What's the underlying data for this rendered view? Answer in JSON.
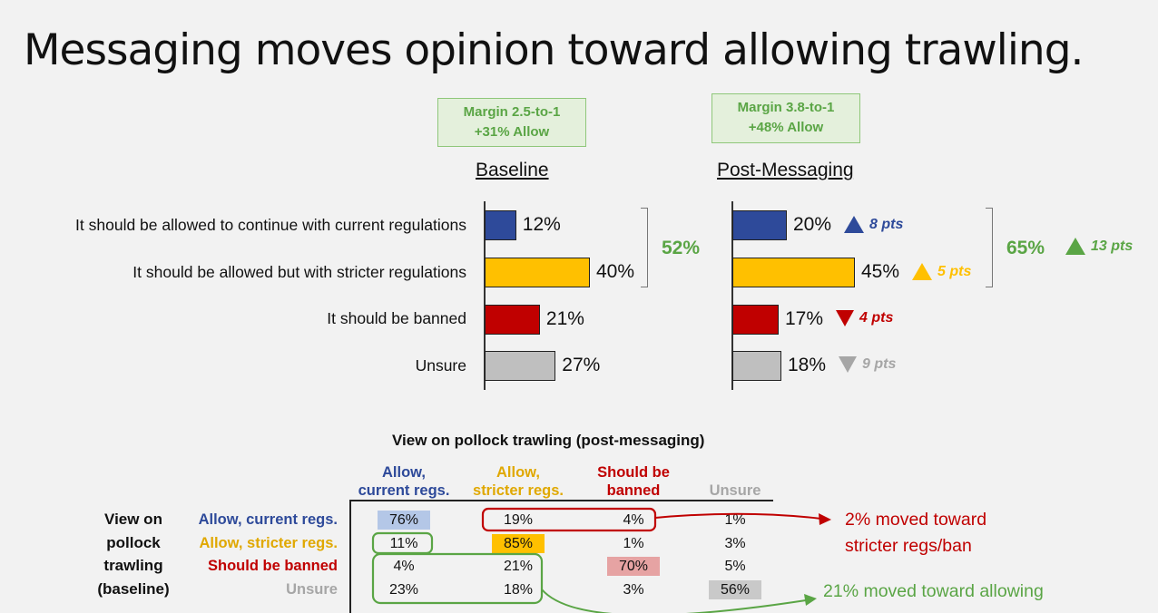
{
  "title": "Messaging moves opinion toward allowing trawling.",
  "chart_data": [
    {
      "type": "bar",
      "orientation": "horizontal",
      "title": "Baseline",
      "annotation": [
        "Margin 2.5-to-1",
        "+31%  Allow"
      ],
      "categories": [
        "It should be allowed to continue with current regulations",
        "It should be allowed but with stricter regulations",
        "It should be banned",
        "Unsure"
      ],
      "values": [
        12,
        40,
        21,
        27
      ],
      "labels": [
        "12%",
        "40%",
        "21%",
        "27%"
      ],
      "group_total": "52%",
      "colors": [
        "#2e4a9a",
        "#ffc000",
        "#c00000",
        "#bfbfbf"
      ]
    },
    {
      "type": "bar",
      "orientation": "horizontal",
      "title": "Post-Messaging",
      "annotation": [
        "Margin 3.8-to-1",
        "+48%  Allow"
      ],
      "categories": [
        "It should be allowed to continue with current regulations",
        "It should be allowed but with stricter regulations",
        "It should be banned",
        "Unsure"
      ],
      "values": [
        20,
        45,
        17,
        18
      ],
      "labels": [
        "20%",
        "45%",
        "17%",
        "18%"
      ],
      "changes": [
        {
          "direction": "up",
          "text": "8 pts",
          "color": "#2e4a9a"
        },
        {
          "direction": "up",
          "text": "5 pts",
          "color": "#ffc000"
        },
        {
          "direction": "down",
          "text": "4 pts",
          "color": "#c00000"
        },
        {
          "direction": "down",
          "text": "9 pts",
          "color": "#a6a6a6"
        }
      ],
      "group_total": "65%",
      "group_change": {
        "direction": "up",
        "text": "13 pts",
        "color": "#5aa545"
      },
      "colors": [
        "#2e4a9a",
        "#ffc000",
        "#c00000",
        "#bfbfbf"
      ]
    },
    {
      "type": "table",
      "title": "View on pollock trawling (post-messaging)",
      "row_axis_label": [
        "View on",
        "pollock",
        "trawling",
        "(baseline)"
      ],
      "columns": [
        {
          "lines": [
            "Allow,",
            "current regs."
          ],
          "color": "#2e4a9a"
        },
        {
          "lines": [
            "Allow,",
            "stricter regs."
          ],
          "color": "#e0a800"
        },
        {
          "lines": [
            "Should be",
            "banned"
          ],
          "color": "#c00000"
        },
        {
          "lines": [
            "Unsure"
          ],
          "color": "#a6a6a6"
        }
      ],
      "rows": [
        {
          "label": "Allow, current regs.",
          "color": "#2e4a9a",
          "cells": [
            "76%",
            "19%",
            "4%",
            "1%"
          ],
          "highlight": 0,
          "highlight_color": "#b4c7e7"
        },
        {
          "label": "Allow, stricter regs.",
          "color": "#e0a800",
          "cells": [
            "11%",
            "85%",
            "1%",
            "3%"
          ],
          "highlight": 1,
          "highlight_color": "#ffc000"
        },
        {
          "label": "Should be banned",
          "color": "#c00000",
          "cells": [
            "4%",
            "21%",
            "70%",
            "5%"
          ],
          "highlight": 2,
          "highlight_color": "#e6a3a3"
        },
        {
          "label": "Unsure",
          "color": "#a6a6a6",
          "cells": [
            "23%",
            "18%",
            "3%",
            "56%"
          ],
          "highlight": 3,
          "highlight_color": "#c9c9c9"
        }
      ],
      "callouts": [
        {
          "lines": [
            "2% moved toward",
            "stricter regs/ban"
          ],
          "color": "#c00000"
        },
        {
          "lines": [
            "21% moved toward allowing"
          ],
          "color": "#5aa545"
        }
      ]
    }
  ]
}
